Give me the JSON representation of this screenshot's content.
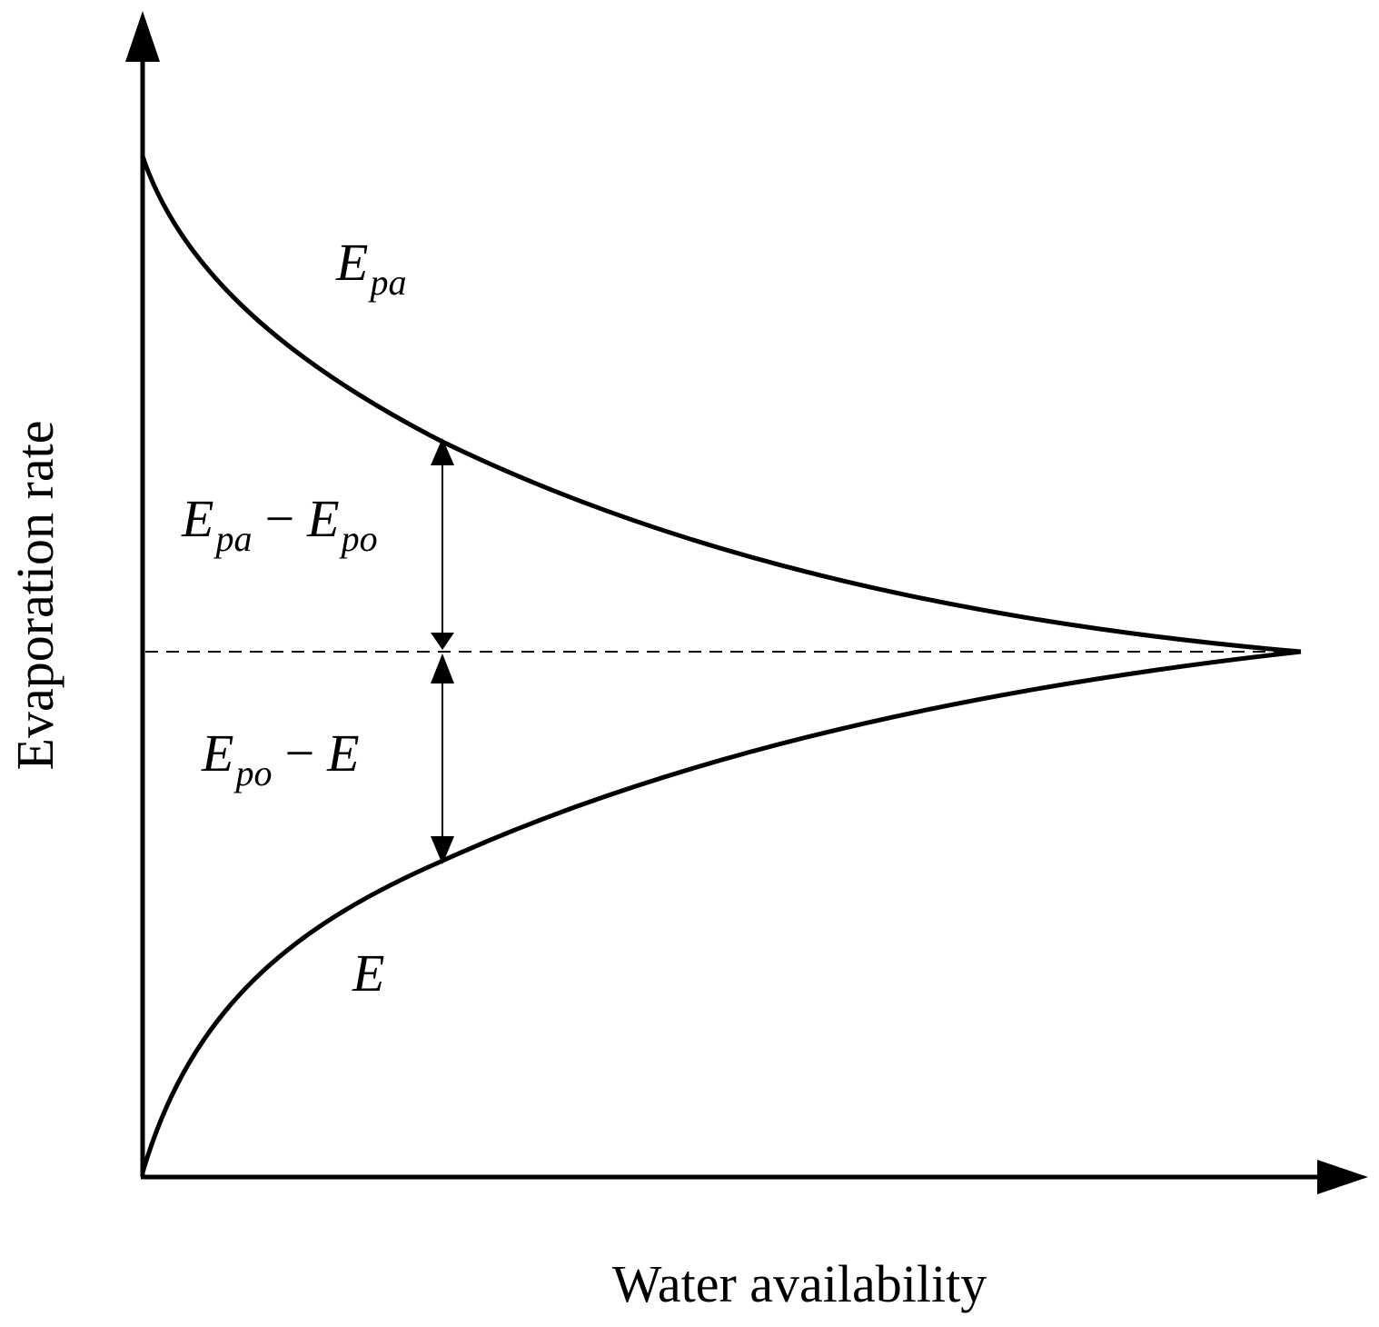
{
  "diagram": {
    "y_axis_label": "Evaporation rate",
    "x_axis_label": "Water availability",
    "curves": {
      "upper": {
        "symbol": "E",
        "subscript": "pa"
      },
      "lower": {
        "symbol": "E"
      }
    },
    "gaps": {
      "upper": {
        "term1": "E",
        "term1_sub": "pa",
        "minus": "−",
        "term2": "E",
        "term2_sub": "po"
      },
      "lower": {
        "term1": "E",
        "term1_sub": "po",
        "minus": "−",
        "term2": "E"
      }
    },
    "line_color": "#000000",
    "background": "#ffffff"
  }
}
